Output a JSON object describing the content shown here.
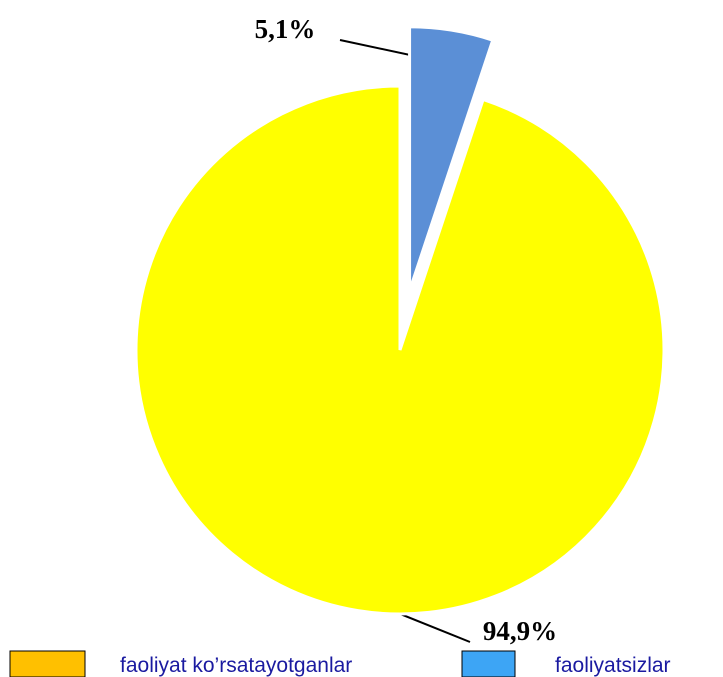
{
  "chart_data": {
    "type": "pie",
    "categories": [
      "faoliyat ko’rsatayotganlar",
      "faoliyatsizlar"
    ],
    "values": [
      94.9,
      5.1
    ],
    "value_labels": [
      "94,9%",
      "5,1%"
    ],
    "colors": [
      "#ffff00",
      "#5b8fd6"
    ],
    "legend_colors": [
      "#ffc000",
      "#3da5f5"
    ]
  }
}
